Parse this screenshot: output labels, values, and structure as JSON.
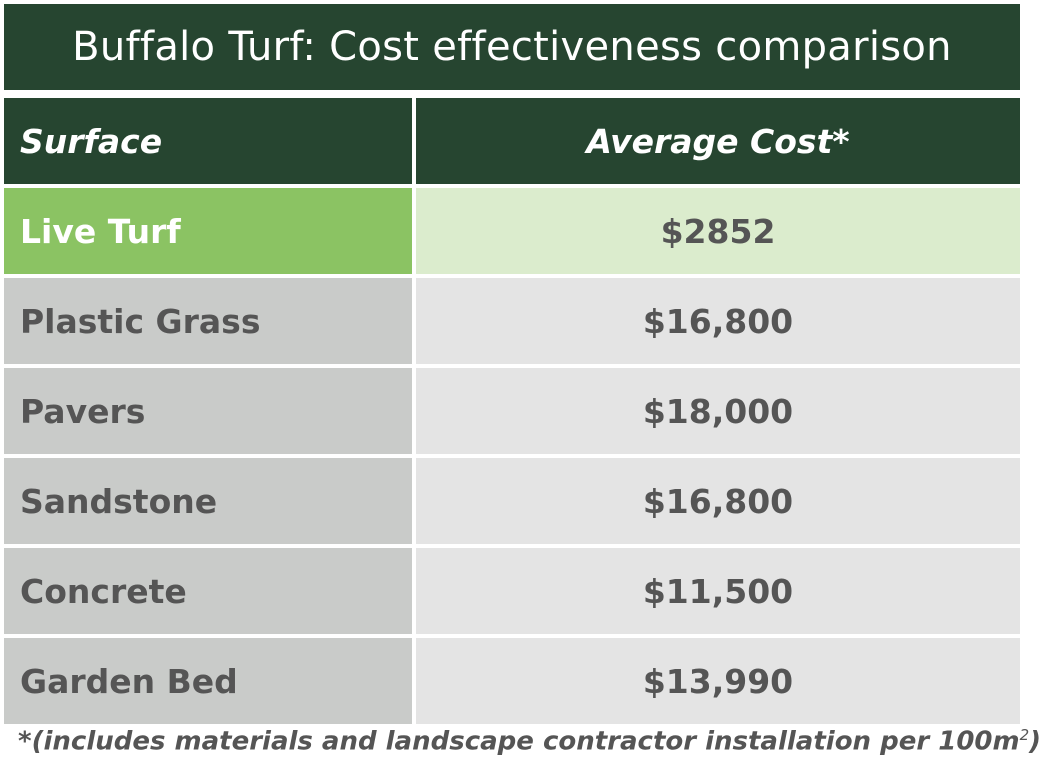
{
  "title": "Buffalo Turf: Cost effectiveness comparison",
  "columns": {
    "surface": "Surface",
    "cost": "Average Cost*"
  },
  "rows": [
    {
      "surface": "Live Turf",
      "cost": "$2852"
    },
    {
      "surface": "Plastic Grass",
      "cost": "$16,800"
    },
    {
      "surface": "Pavers",
      "cost": "$18,000"
    },
    {
      "surface": "Sandstone",
      "cost": "$16,800"
    },
    {
      "surface": "Concrete",
      "cost": "$11,500"
    },
    {
      "surface": "Garden Bed",
      "cost": "$13,990"
    }
  ],
  "footnote": {
    "text": "*(includes materials and landscape contractor installation per 100m",
    "superscript": "2",
    "close": ")"
  },
  "colors": {
    "header_green": "#264530",
    "highlight_green": "#8bc363",
    "highlight_light": "#dbeccd",
    "row_gray": "#c9cbc9",
    "cell_light_gray": "#e4e4e4"
  }
}
